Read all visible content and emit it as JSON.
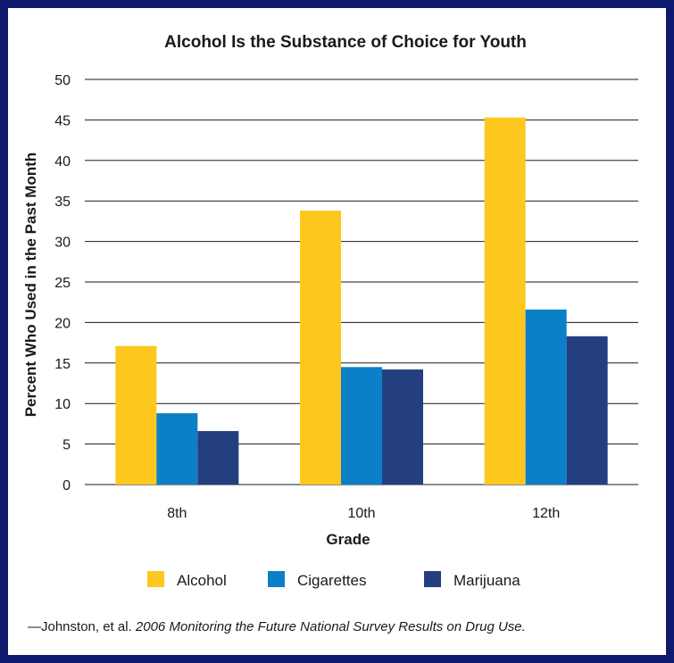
{
  "chart_data": {
    "type": "bar",
    "title": "Alcohol Is the Substance of Choice for Youth",
    "xlabel": "Grade",
    "ylabel": "Percent Who Used in the Past Month",
    "categories": [
      "8th",
      "10th",
      "12th"
    ],
    "series": [
      {
        "name": "Alcohol",
        "color": "#fcc81d",
        "values": [
          17.1,
          33.8,
          45.3
        ]
      },
      {
        "name": "Cigarettes",
        "color": "#0b80c8",
        "values": [
          8.8,
          14.5,
          21.6
        ]
      },
      {
        "name": "Marijuana",
        "color": "#233f7f",
        "values": [
          6.6,
          14.2,
          18.3
        ]
      }
    ],
    "ylim": [
      0,
      50
    ],
    "yticks": [
      0,
      5,
      10,
      15,
      20,
      25,
      30,
      35,
      40,
      45,
      50
    ],
    "grid": true,
    "legend_position": "bottom"
  },
  "source": {
    "prefix": "—Johnston, et al. ",
    "title": "2006 Monitoring the Future National Survey Results on Drug Use."
  }
}
